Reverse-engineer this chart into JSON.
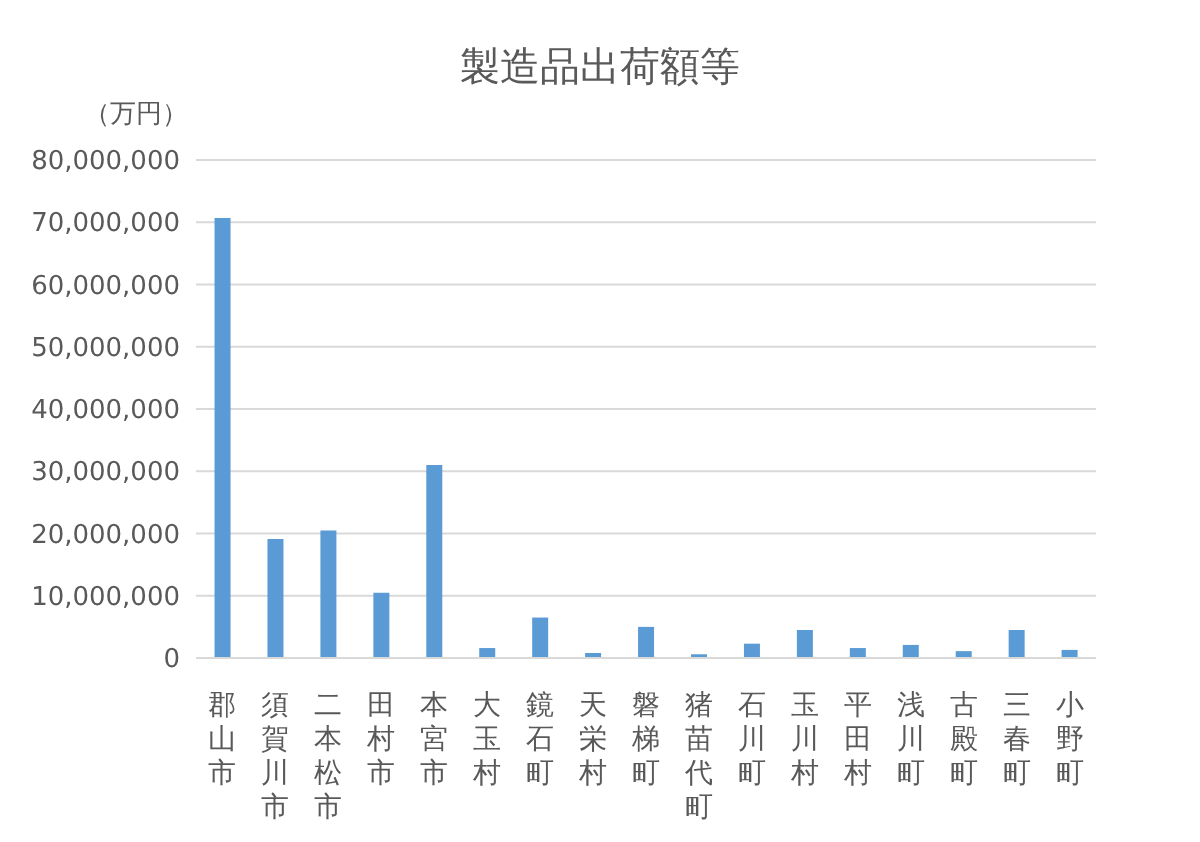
{
  "chart_data": {
    "type": "bar",
    "title": "製造品出荷額等",
    "ylabel": "（万円）",
    "categories": [
      "郡山市",
      "須賀川市",
      "二本松市",
      "田村市",
      "本宮市",
      "大玉村",
      "鏡石町",
      "天栄村",
      "磐梯町",
      "猪苗代町",
      "石川町",
      "玉川村",
      "平田村",
      "浅川町",
      "古殿町",
      "三春町",
      "小野町"
    ],
    "values": [
      70700000,
      19100000,
      20500000,
      10500000,
      31000000,
      1600000,
      6500000,
      800000,
      5000000,
      600000,
      2300000,
      4500000,
      1600000,
      2100000,
      1100000,
      4500000,
      1300000
    ],
    "color": "#5b9bd5",
    "ylim": [
      0,
      80000000
    ],
    "yticks": [
      0,
      {
        "value": 10000000,
        "label": "10,000,000"
      },
      {
        "value": 20000000,
        "label": "20,000,000"
      },
      {
        "value": 30000000,
        "label": "30,000,000"
      },
      {
        "value": 40000000,
        "label": "40,000,000"
      },
      {
        "value": 50000000,
        "label": "50,000,000"
      },
      {
        "value": 60000000,
        "label": "60,000,000"
      },
      {
        "value": 70000000,
        "label": "70,000,000"
      },
      {
        "value": 80000000,
        "label": "80,000,000"
      }
    ],
    "grid": "y"
  }
}
